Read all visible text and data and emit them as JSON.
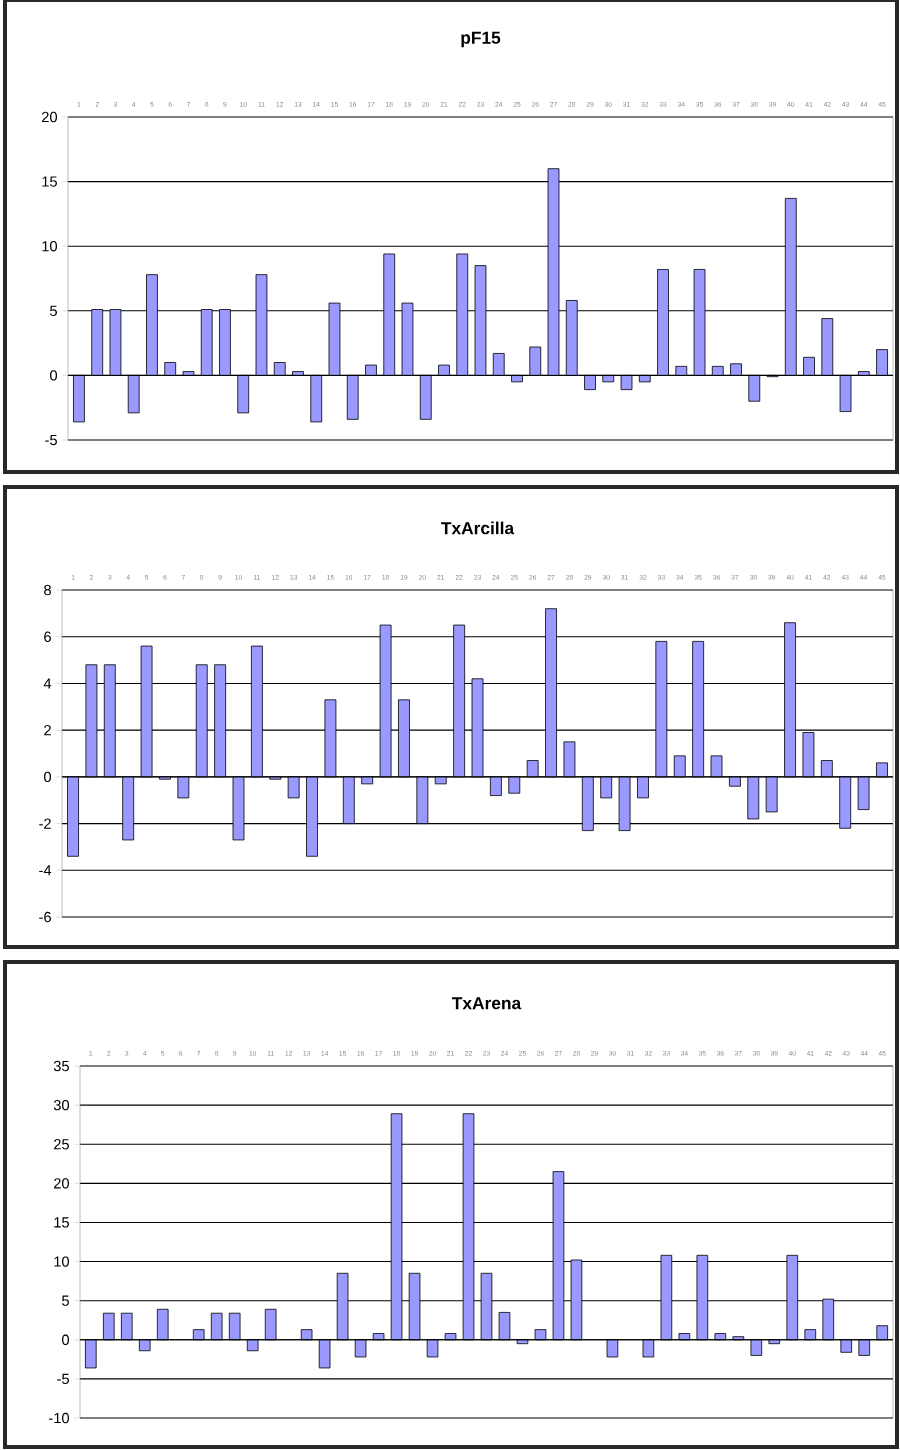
{
  "chart_data": [
    {
      "type": "bar",
      "title": "pF15",
      "categories": [
        "1",
        "2",
        "3",
        "4",
        "5",
        "6",
        "7",
        "8",
        "9",
        "10",
        "11",
        "12",
        "13",
        "14",
        "15",
        "16",
        "17",
        "18",
        "19",
        "20",
        "21",
        "22",
        "23",
        "24",
        "25",
        "26",
        "27",
        "28",
        "29",
        "30",
        "31",
        "32",
        "33",
        "34",
        "35",
        "36",
        "37",
        "38",
        "39",
        "40",
        "41",
        "42",
        "43",
        "44",
        "45"
      ],
      "values": [
        -3.6,
        5.1,
        5.1,
        -2.9,
        7.8,
        1.0,
        0.3,
        5.1,
        5.1,
        -2.9,
        7.8,
        1.0,
        0.3,
        -3.6,
        5.6,
        -3.4,
        0.8,
        9.4,
        5.6,
        -3.4,
        0.8,
        9.4,
        8.5,
        1.7,
        -0.5,
        2.2,
        16.0,
        5.8,
        -1.1,
        -0.5,
        -1.1,
        -0.5,
        8.2,
        0.7,
        8.2,
        0.7,
        0.9,
        -2.0,
        -0.1,
        13.7,
        1.4,
        4.4,
        -2.8,
        0.3,
        2.0
      ],
      "color": "#9999ff",
      "ylim": [
        -5,
        20
      ],
      "yticks": [
        -5,
        0,
        5,
        10,
        15,
        20
      ],
      "grid": "y"
    },
    {
      "type": "bar",
      "title": "TxArcilla",
      "categories": [
        "1",
        "2",
        "3",
        "4",
        "5",
        "6",
        "7",
        "8",
        "9",
        "10",
        "11",
        "12",
        "13",
        "14",
        "15",
        "16",
        "17",
        "18",
        "19",
        "20",
        "21",
        "22",
        "23",
        "24",
        "25",
        "26",
        "27",
        "28",
        "29",
        "30",
        "31",
        "32",
        "33",
        "34",
        "35",
        "36",
        "37",
        "38",
        "39",
        "40",
        "41",
        "42",
        "43",
        "44",
        "45"
      ],
      "values": [
        -3.4,
        4.8,
        4.8,
        -2.7,
        5.6,
        -0.1,
        -0.9,
        4.8,
        4.8,
        -2.7,
        5.6,
        -0.1,
        -0.9,
        -3.4,
        3.3,
        -2.0,
        -0.3,
        6.5,
        3.3,
        -2.0,
        -0.3,
        6.5,
        4.2,
        -0.8,
        -0.7,
        0.7,
        7.2,
        1.5,
        -2.3,
        -0.9,
        -2.3,
        -0.9,
        5.8,
        0.9,
        5.8,
        0.9,
        -0.4,
        -1.8,
        -1.5,
        6.6,
        1.9,
        0.7,
        -2.2,
        -1.4,
        0.6
      ],
      "color": "#9999ff",
      "ylim": [
        -6,
        8
      ],
      "yticks": [
        -6,
        -4,
        -2,
        0,
        2,
        4,
        6,
        8
      ],
      "grid": "y"
    },
    {
      "type": "bar",
      "title": "TxArena",
      "categories": [
        "1",
        "2",
        "3",
        "4",
        "5",
        "6",
        "7",
        "8",
        "9",
        "10",
        "11",
        "12",
        "13",
        "14",
        "15",
        "16",
        "17",
        "18",
        "19",
        "20",
        "21",
        "22",
        "23",
        "24",
        "25",
        "26",
        "27",
        "28",
        "29",
        "30",
        "31",
        "32",
        "33",
        "34",
        "35",
        "36",
        "37",
        "38",
        "39",
        "40",
        "41",
        "42",
        "43",
        "44",
        "45"
      ],
      "values": [
        -3.6,
        3.4,
        3.4,
        -1.4,
        3.9,
        null,
        1.3,
        3.4,
        3.4,
        -1.4,
        3.9,
        null,
        1.3,
        -3.6,
        8.5,
        -2.2,
        0.8,
        28.9,
        8.5,
        -2.2,
        0.8,
        28.9,
        8.5,
        3.5,
        -0.5,
        1.3,
        21.5,
        10.2,
        null,
        -2.2,
        null,
        -2.2,
        10.8,
        0.8,
        10.8,
        0.8,
        0.4,
        -2.0,
        -0.5,
        10.8,
        1.3,
        5.2,
        -1.6,
        -2.0,
        1.8
      ],
      "color": "#9999ff",
      "ylim": [
        -10,
        35
      ],
      "yticks": [
        -10,
        -5,
        0,
        5,
        10,
        15,
        20,
        25,
        30,
        35
      ],
      "grid": "y"
    }
  ]
}
